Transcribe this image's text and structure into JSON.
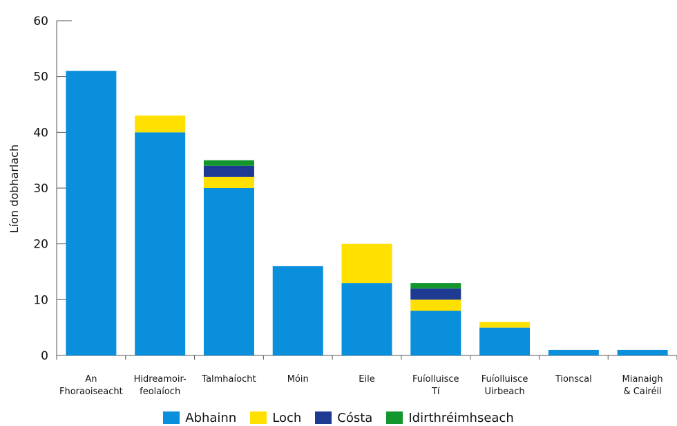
{
  "chart_data": {
    "type": "bar",
    "stacked": true,
    "ylabel": "Líon dobharlach",
    "ylim": [
      0,
      60
    ],
    "yticks": [
      0,
      10,
      20,
      30,
      40,
      50,
      60
    ],
    "categories": [
      [
        "An",
        "Fhoraoiseacht"
      ],
      [
        "Hidreamoir-",
        "feolaíoch"
      ],
      [
        "Talmhaíocht"
      ],
      [
        "Móin"
      ],
      [
        "Eile"
      ],
      [
        "Fuíolluisce",
        "Tí"
      ],
      [
        "Fuíolluisce",
        "Uirbeach"
      ],
      [
        "Tionscal"
      ],
      [
        "Mianaigh",
        "& Cairéil"
      ]
    ],
    "series": [
      {
        "name": "Abhainn",
        "color": "#0a8fdc",
        "values": [
          51,
          40,
          30,
          16,
          13,
          8,
          5,
          1,
          1
        ]
      },
      {
        "name": "Loch",
        "color": "#ffe000",
        "values": [
          0,
          3,
          2,
          0,
          7,
          2,
          1,
          0,
          0
        ]
      },
      {
        "name": "Cósta",
        "color": "#1f3a93",
        "values": [
          0,
          0,
          2,
          0,
          0,
          2,
          0,
          0,
          0
        ]
      },
      {
        "name": "Idirthréimhseach",
        "color": "#14962e",
        "values": [
          0,
          0,
          1,
          0,
          0,
          1,
          0,
          0,
          0
        ]
      }
    ],
    "grid": false,
    "legend_position": "bottom"
  }
}
